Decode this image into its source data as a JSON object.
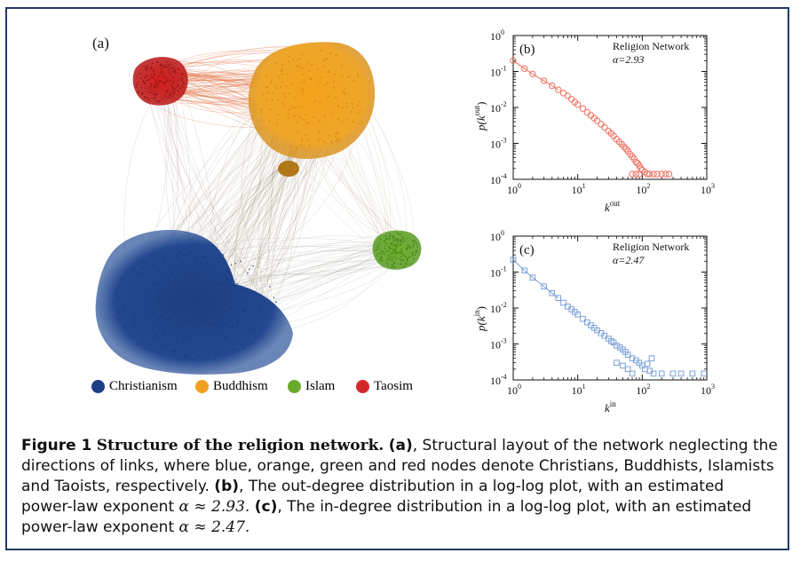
{
  "network": {
    "panel_label": "(a)",
    "legend": [
      {
        "label": "Christianism",
        "color": "#1b3f86"
      },
      {
        "label": "Buddhism",
        "color": "#f0a020"
      },
      {
        "label": "Islam",
        "color": "#6aaa2a"
      },
      {
        "label": "Taosim",
        "color": "#d42828"
      }
    ]
  },
  "chart_data": [
    {
      "type": "scatter",
      "panel_label": "(b)",
      "annotation": "Religion Network",
      "alpha_text": "α=2.93",
      "xlabel": "k",
      "xlabel_sup": "out",
      "ylabel_pre": "p(k",
      "ylabel_sup": "out",
      "ylabel_post": ")",
      "xscale": "log",
      "yscale": "log",
      "xlim": [
        1,
        1000
      ],
      "ylim": [
        0.0001,
        1
      ],
      "x_ticks": [
        1,
        10,
        100,
        1000
      ],
      "y_ticks": [
        0.0001,
        0.001,
        0.01,
        0.1,
        1
      ],
      "color": "#f07060",
      "marker": "circle",
      "series": [
        {
          "values": [
            [
              1,
              0.2
            ],
            [
              1.5,
              0.12
            ],
            [
              2,
              0.085
            ],
            [
              3,
              0.055
            ],
            [
              4,
              0.04
            ],
            [
              5,
              0.031
            ],
            [
              6,
              0.025
            ],
            [
              7,
              0.021
            ],
            [
              8,
              0.017
            ],
            [
              9,
              0.014
            ],
            [
              10,
              0.012
            ],
            [
              12,
              0.0093
            ],
            [
              14,
              0.0073
            ],
            [
              16,
              0.006
            ],
            [
              18,
              0.005
            ],
            [
              20,
              0.0043
            ],
            [
              23,
              0.0034
            ],
            [
              26,
              0.0028
            ],
            [
              30,
              0.0022
            ],
            [
              33,
              0.0019
            ],
            [
              36,
              0.0016
            ],
            [
              40,
              0.0013
            ],
            [
              44,
              0.0011
            ],
            [
              48,
              0.00095
            ],
            [
              52,
              0.0008
            ],
            [
              56,
              0.0007
            ],
            [
              60,
              0.0006
            ],
            [
              65,
              0.0005
            ],
            [
              70,
              0.00043
            ],
            [
              75,
              0.00037
            ],
            [
              80,
              0.0003
            ],
            [
              85,
              0.00028
            ],
            [
              90,
              0.00024
            ],
            [
              95,
              0.0002
            ],
            [
              100,
              0.00018
            ],
            [
              110,
              0.00016
            ],
            [
              120,
              0.00014
            ],
            [
              130,
              0.00014
            ],
            [
              150,
              0.00014
            ],
            [
              170,
              0.00014
            ],
            [
              200,
              0.00014
            ],
            [
              230,
              0.00014
            ],
            [
              260,
              0.00014
            ],
            [
              70,
              0.00014
            ],
            [
              80,
              0.00014
            ],
            [
              90,
              0.00014
            ]
          ]
        }
      ]
    },
    {
      "type": "scatter",
      "panel_label": "(c)",
      "annotation": "Religion Network",
      "alpha_text": "α=2.47",
      "xlabel": "k",
      "xlabel_sup": "in",
      "ylabel_pre": "p(k",
      "ylabel_sup": "in",
      "ylabel_post": ")",
      "xscale": "log",
      "yscale": "log",
      "xlim": [
        1,
        1000
      ],
      "ylim": [
        0.0001,
        1
      ],
      "x_ticks": [
        1,
        10,
        100,
        1000
      ],
      "y_ticks": [
        0.0001,
        0.001,
        0.01,
        0.1,
        1
      ],
      "color": "#7aa0d8",
      "marker": "square",
      "series": [
        {
          "values": [
            [
              1,
              0.22
            ],
            [
              1.5,
              0.11
            ],
            [
              2,
              0.07
            ],
            [
              3,
              0.04
            ],
            [
              4,
              0.026
            ],
            [
              5,
              0.019
            ],
            [
              6,
              0.014
            ],
            [
              7,
              0.011
            ],
            [
              8,
              0.0092
            ],
            [
              9,
              0.0078
            ],
            [
              10,
              0.0066
            ],
            [
              12,
              0.005
            ],
            [
              14,
              0.004
            ],
            [
              16,
              0.0033
            ],
            [
              18,
              0.0028
            ],
            [
              20,
              0.0024
            ],
            [
              23,
              0.002
            ],
            [
              26,
              0.0017
            ],
            [
              30,
              0.0014
            ],
            [
              33,
              0.0012
            ],
            [
              36,
              0.0011
            ],
            [
              40,
              0.0009
            ],
            [
              45,
              0.0008
            ],
            [
              50,
              0.0007
            ],
            [
              55,
              0.0006
            ],
            [
              60,
              0.0005
            ],
            [
              70,
              0.0004
            ],
            [
              80,
              0.00035
            ],
            [
              90,
              0.0003
            ],
            [
              100,
              0.00025
            ],
            [
              110,
              0.0002
            ],
            [
              130,
              0.00018
            ],
            [
              150,
              0.00015
            ],
            [
              200,
              0.00015
            ],
            [
              300,
              0.00015
            ],
            [
              400,
              0.00015
            ],
            [
              600,
              0.00015
            ],
            [
              900,
              0.00015
            ],
            [
              50,
              0.00025
            ],
            [
              60,
              0.0002
            ],
            [
              70,
              0.00015
            ],
            [
              40,
              0.0003
            ],
            [
              120,
              0.00028
            ],
            [
              140,
              0.0004
            ]
          ]
        }
      ]
    }
  ],
  "caption": {
    "lead": "Figure 1",
    "title": "Structure of the religion network.",
    "a_tag": "(a)",
    "a_text": ", Structural layout of the network neglecting the directions of links, where blue, orange, green and red nodes denote Christians, Buddhists, Islamists and Taoists, respectively.",
    "b_tag": "(b)",
    "b_text": ", The out-degree distribution in a log-log plot, with an estimated power-law exponent",
    "b_math": "α ≈ 2.93.",
    "c_tag": "(c)",
    "c_text": ", The in-degree distribution in a log-log plot, with an estimated power-law exponent",
    "c_math": "α ≈ 2.47."
  }
}
